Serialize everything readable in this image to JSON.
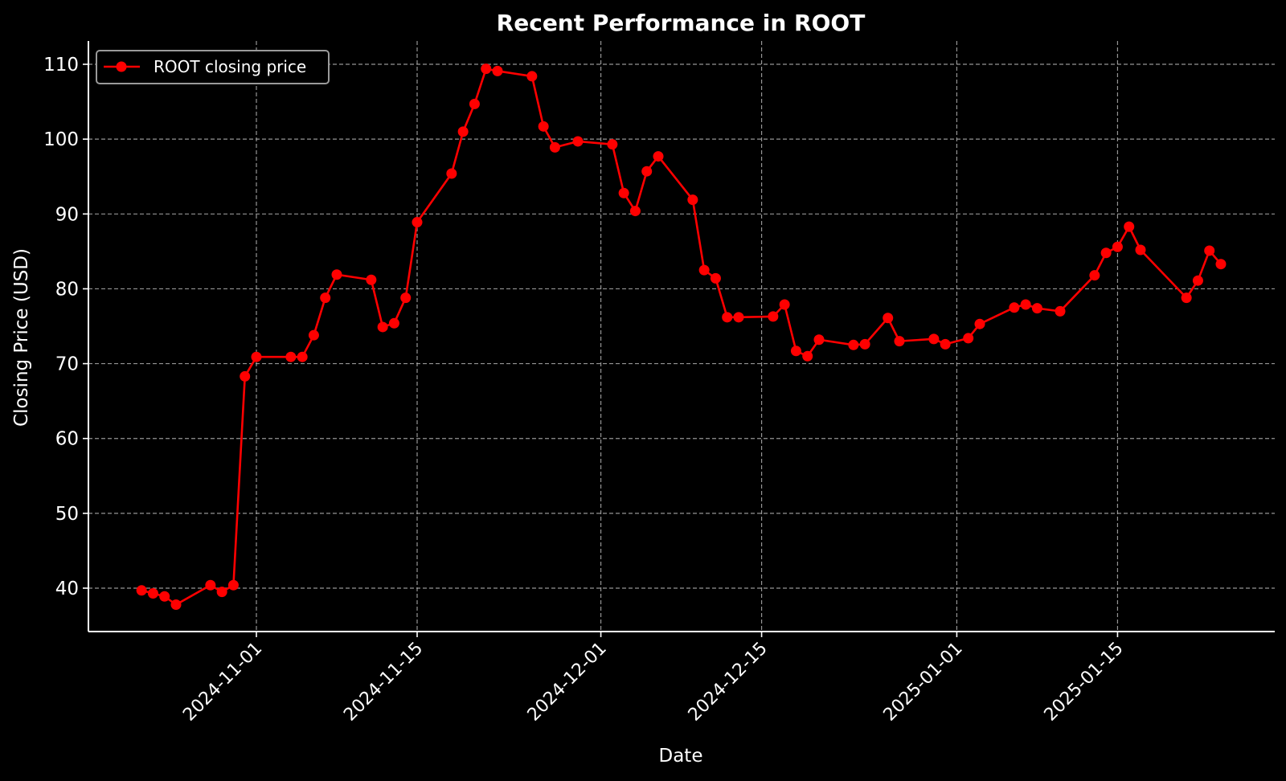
{
  "chart_data": {
    "type": "line",
    "title": "Recent Performance in ROOT",
    "xlabel": "Date",
    "ylabel": "Closing Price (USD)",
    "ylim": [
      34.5,
      113.5
    ],
    "yticks": [
      40,
      50,
      60,
      70,
      80,
      90,
      100,
      110
    ],
    "xticks": [
      "2024-11-01",
      "2024-11-15",
      "2024-12-01",
      "2024-12-15",
      "2025-01-01",
      "2025-01-15"
    ],
    "xlim": [
      "2024-10-17",
      "2025-01-29"
    ],
    "grid": true,
    "legend_position": "upper left",
    "background": "#000000",
    "series": [
      {
        "name": "ROOT closing price",
        "color": "#ff0000",
        "marker": "circle",
        "x": [
          "2024-10-22",
          "2024-10-23",
          "2024-10-24",
          "2024-10-25",
          "2024-10-28",
          "2024-10-29",
          "2024-10-30",
          "2024-10-31",
          "2024-11-01",
          "2024-11-04",
          "2024-11-05",
          "2024-11-06",
          "2024-11-07",
          "2024-11-08",
          "2024-11-11",
          "2024-11-12",
          "2024-11-13",
          "2024-11-14",
          "2024-11-15",
          "2024-11-18",
          "2024-11-19",
          "2024-11-20",
          "2024-11-21",
          "2024-11-22",
          "2024-11-25",
          "2024-11-26",
          "2024-11-27",
          "2024-11-29",
          "2024-12-02",
          "2024-12-03",
          "2024-12-04",
          "2024-12-05",
          "2024-12-06",
          "2024-12-09",
          "2024-12-10",
          "2024-12-11",
          "2024-12-12",
          "2024-12-13",
          "2024-12-16",
          "2024-12-17",
          "2024-12-18",
          "2024-12-19",
          "2024-12-20",
          "2024-12-23",
          "2024-12-24",
          "2024-12-26",
          "2024-12-27",
          "2024-12-30",
          "2024-12-31",
          "2025-01-02",
          "2025-01-03",
          "2025-01-06",
          "2025-01-07",
          "2025-01-08",
          "2025-01-10",
          "2025-01-13",
          "2025-01-14",
          "2025-01-15",
          "2025-01-16",
          "2025-01-17",
          "2025-01-21",
          "2025-01-22",
          "2025-01-23",
          "2025-01-24"
        ],
        "values": [
          39.7,
          39.3,
          38.9,
          37.8,
          40.4,
          39.5,
          40.4,
          68.3,
          70.9,
          70.9,
          70.9,
          73.8,
          78.8,
          81.9,
          81.2,
          74.9,
          75.4,
          78.8,
          88.9,
          95.4,
          101.0,
          104.7,
          109.4,
          109.1,
          108.4,
          101.7,
          98.9,
          99.7,
          99.3,
          92.8,
          90.4,
          95.7,
          97.7,
          91.9,
          82.5,
          81.4,
          76.2,
          76.2,
          76.3,
          77.9,
          71.7,
          71.0,
          73.2,
          72.5,
          72.6,
          76.1,
          73.0,
          73.3,
          72.6,
          73.4,
          75.3,
          77.5,
          77.9,
          77.4,
          77.0,
          81.8,
          84.8,
          85.6,
          88.3,
          85.2,
          78.8,
          81.1,
          85.1,
          83.3
        ]
      }
    ]
  }
}
